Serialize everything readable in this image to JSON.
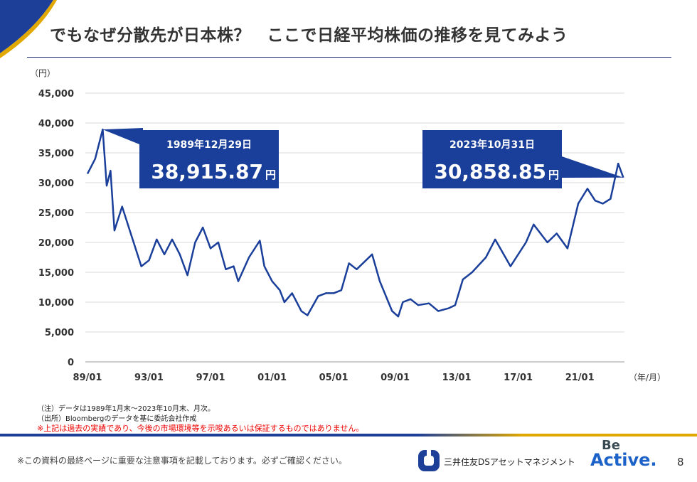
{
  "title": "でもなぜ分散先が日本株？　ここで日経平均株価の推移を見てみよう",
  "chart_data": {
    "type": "line",
    "y_unit_label": "（円）",
    "x_unit_label": "（年/月）",
    "ylim": [
      0,
      45000
    ],
    "y_ticks": [
      "0",
      "5,000",
      "10,000",
      "15,000",
      "20,000",
      "25,000",
      "30,000",
      "35,000",
      "40,000",
      "45,000"
    ],
    "x_ticks": [
      "89/01",
      "93/01",
      "97/01",
      "01/01",
      "05/01",
      "09/01",
      "13/01",
      "17/01",
      "21/01"
    ],
    "grid": "horizontal",
    "color": "#1a3f9a",
    "x": [
      1989.0,
      1989.5,
      1989.99,
      1990.25,
      1990.5,
      1990.75,
      1991.0,
      1991.25,
      1991.75,
      1992.5,
      1993.0,
      1993.5,
      1994.0,
      1994.5,
      1995.0,
      1995.5,
      1996.0,
      1996.5,
      1997.0,
      1997.5,
      1997.99,
      1998.5,
      1998.8,
      1999.5,
      2000.2,
      2000.5,
      2001.0,
      2001.5,
      2001.8,
      2002.3,
      2002.9,
      2003.3,
      2004.0,
      2004.5,
      2005.0,
      2005.5,
      2006.0,
      2006.5,
      2007.5,
      2008.0,
      2008.8,
      2009.2,
      2009.5,
      2010.0,
      2010.5,
      2011.2,
      2011.8,
      2012.5,
      2012.9,
      2013.4,
      2014.0,
      2014.9,
      2015.5,
      2016.5,
      2017.5,
      2018.0,
      2018.9,
      2019.5,
      2020.2,
      2020.9,
      2021.5,
      2022.0,
      2022.5,
      2023.0,
      2023.5,
      2023.83
    ],
    "y": [
      31500,
      34000,
      38915.87,
      29500,
      32000,
      22000,
      24000,
      26000,
      22000,
      16000,
      17000,
      20500,
      18000,
      20500,
      18000,
      14500,
      20000,
      22500,
      19000,
      20000,
      15500,
      16000,
      13500,
      17500,
      20300,
      16000,
      13500,
      12000,
      10000,
      11500,
      8500,
      7800,
      11000,
      11500,
      11500,
      12000,
      16500,
      15500,
      18000,
      13500,
      8500,
      7600,
      10000,
      10500,
      9500,
      9800,
      8500,
      9000,
      9500,
      13800,
      15000,
      17500,
      20500,
      16000,
      20000,
      23000,
      20000,
      21500,
      19000,
      26500,
      29000,
      27000,
      26500,
      27300,
      33200,
      30858.85
    ],
    "annotations": [
      {
        "date": "1989年12月29日",
        "value": "38,915.87",
        "unit": "円"
      },
      {
        "date": "2023年10月31日",
        "value": "30,858.85",
        "unit": "円"
      }
    ]
  },
  "notes": {
    "note1": "（注）データは1989年1月末～2023年10月末、月次。",
    "note2": "（出所）Bloombergのデータを基に委託会社作成",
    "warning": "※上記は過去の実績であり、今後の市場環境等を示唆あるいは保証するものではありません。"
  },
  "footer": {
    "notice": "※この資料の最終ページに重要な注意事項を記載しております。必ずご確認ください。",
    "company": "三井住友DSアセットマネジメント",
    "slogan_be": "Be",
    "slogan_active": "Active.",
    "page": "8"
  }
}
